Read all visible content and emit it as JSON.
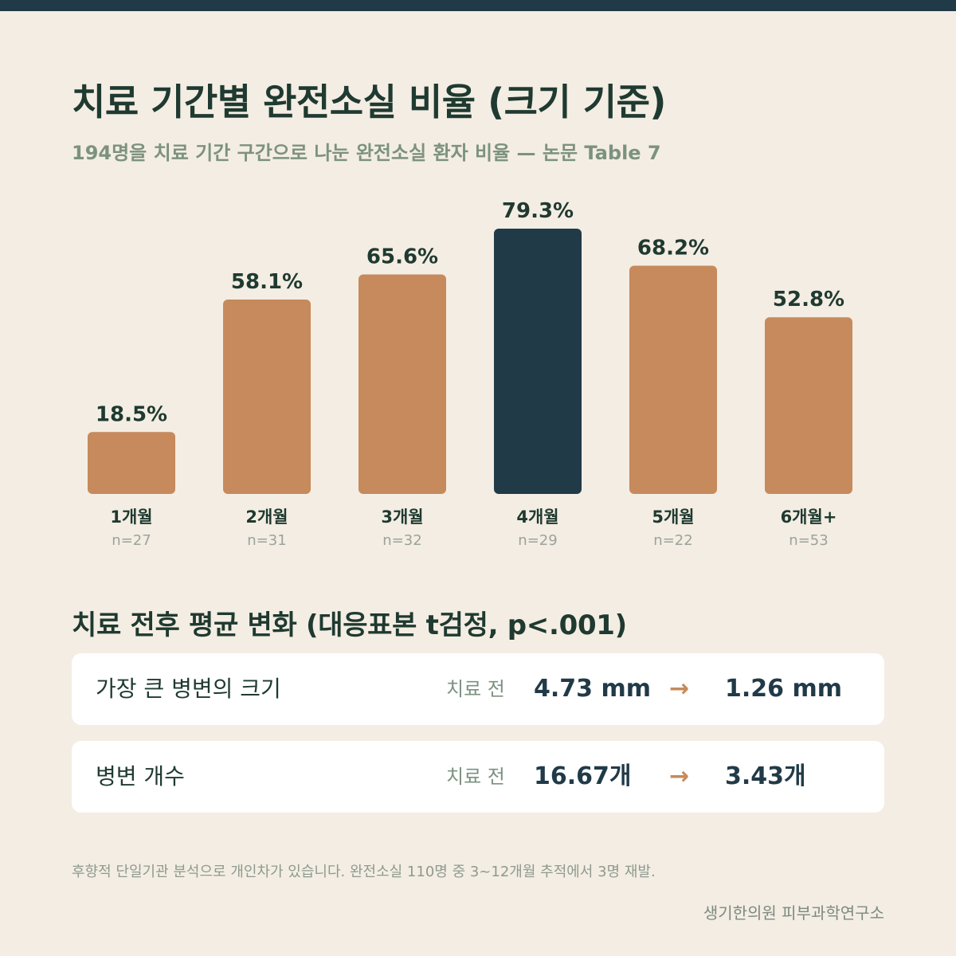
{
  "header": {
    "title": "치료 기간별 완전소실 비율 (크기 기준)",
    "subtitle": "194명을 치료 기간 구간으로 나눈 완전소실 환자 비율 — 논문 Table 7"
  },
  "chart_data": {
    "type": "bar",
    "categories": [
      "1개월",
      "2개월",
      "3개월",
      "4개월",
      "5개월",
      "6개월+"
    ],
    "values": [
      18.5,
      58.1,
      65.6,
      79.3,
      68.2,
      52.8
    ],
    "value_labels": [
      "18.5%",
      "58.1%",
      "65.6%",
      "79.3%",
      "68.2%",
      "52.8%"
    ],
    "n_labels": [
      "n=27",
      "n=31",
      "n=32",
      "n=29",
      "n=22",
      "n=53"
    ],
    "unit": "%",
    "ylim": [
      0,
      100
    ],
    "highlight_index": 3,
    "grid": false,
    "colors": {
      "bar": "#c68a5c",
      "highlight": "#213a48",
      "value_label": "#1f3a30",
      "category_label": "#1f3a30",
      "n_label": "#9aa39c"
    }
  },
  "comparison": {
    "title": "치료 전후 평균 변화 (대응표본 t검정, p<.001)",
    "rows": [
      {
        "label": "가장 큰 병변의 크기",
        "before_label": "치료 전",
        "before": "4.73 mm",
        "arrow": "→",
        "after": "1.26 mm"
      },
      {
        "label": "병변 개수",
        "before_label": "치료 전",
        "before": "16.67개",
        "arrow": "→",
        "after": "3.43개"
      }
    ]
  },
  "footer": {
    "note": "후향적 단일기관 분석으로 개인차가 있습니다. 완전소실 110명 중 3~12개월 추적에서 3명 재발.",
    "source": "생기한의원 피부과학연구소"
  }
}
